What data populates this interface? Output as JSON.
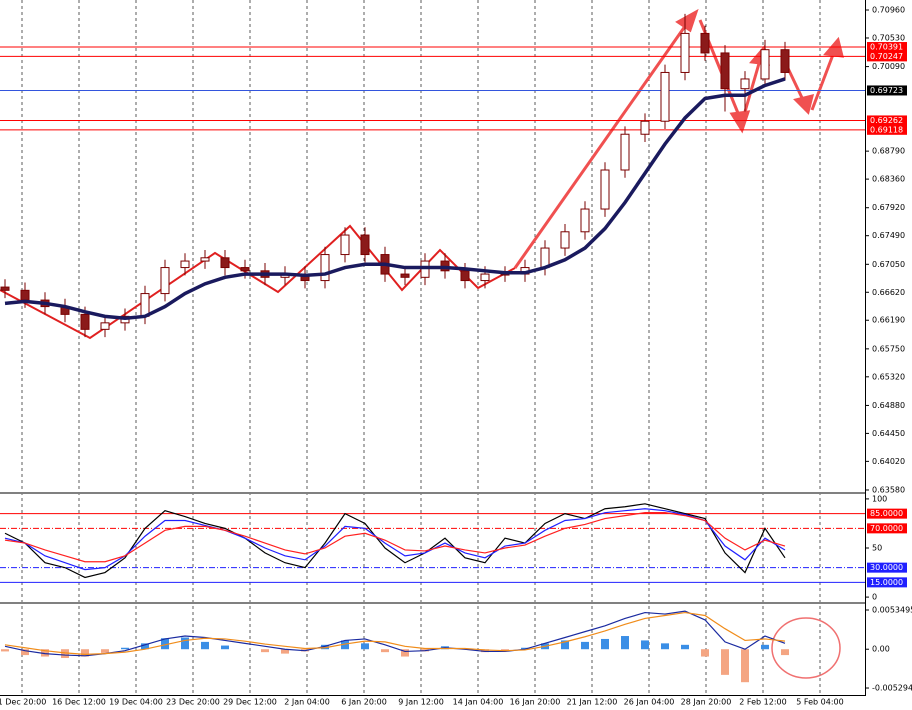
{
  "time_axis": [
    "1 Dec 20:00",
    "16 Dec 12:00",
    "19 Dec 04:00",
    "23 Dec 20:00",
    "29 Dec 12:00",
    "2 Jan 04:00",
    "6 Jan 20:00",
    "9 Jan 12:00",
    "14 Jan 04:00",
    "16 Jan 20:00",
    "21 Jan 12:00",
    "26 Jan 04:00",
    "28 Jan 20:00",
    "2 Feb 12:00",
    "5 Feb 04:00"
  ],
  "chart_data": [
    {
      "type": "candlestick",
      "up_color": "#ffffff",
      "down_color": "#8b1a1a",
      "edge_color": "#7a0000",
      "open": [
        0.667,
        0.6665,
        0.665,
        0.664,
        0.6628,
        0.6605,
        0.6615,
        0.6625,
        0.666,
        0.67,
        0.671,
        0.6715,
        0.67,
        0.6695,
        0.6685,
        0.669,
        0.668,
        0.672,
        0.675,
        0.672,
        0.669,
        0.6685,
        0.671,
        0.6695,
        0.668,
        0.669,
        0.669,
        0.67,
        0.673,
        0.6755,
        0.679,
        0.685,
        0.6905,
        0.6925,
        0.7,
        0.706,
        0.703,
        0.6975,
        0.699,
        0.7035
      ],
      "high": [
        0.6682,
        0.6677,
        0.6662,
        0.6652,
        0.664,
        0.6627,
        0.6637,
        0.6672,
        0.6712,
        0.6722,
        0.6727,
        0.6727,
        0.6712,
        0.6707,
        0.6702,
        0.6702,
        0.6732,
        0.6762,
        0.6762,
        0.6732,
        0.6702,
        0.6722,
        0.6722,
        0.6707,
        0.6702,
        0.6702,
        0.6712,
        0.6742,
        0.6767,
        0.6802,
        0.6862,
        0.6917,
        0.6937,
        0.7012,
        0.709,
        0.7072,
        0.7042,
        0.7002,
        0.705,
        0.7047
      ],
      "low": [
        0.6653,
        0.6638,
        0.6628,
        0.6616,
        0.6593,
        0.6593,
        0.6603,
        0.6613,
        0.6648,
        0.6688,
        0.6698,
        0.6688,
        0.6683,
        0.6673,
        0.6673,
        0.6668,
        0.6668,
        0.6708,
        0.6708,
        0.6678,
        0.6673,
        0.6673,
        0.6683,
        0.6668,
        0.6668,
        0.6678,
        0.6678,
        0.6688,
        0.6718,
        0.6743,
        0.6778,
        0.6838,
        0.6893,
        0.6913,
        0.6988,
        0.7018,
        0.694,
        0.694,
        0.6978,
        0.6988
      ],
      "close": [
        0.6665,
        0.665,
        0.664,
        0.6628,
        0.6605,
        0.6615,
        0.6625,
        0.666,
        0.67,
        0.671,
        0.6715,
        0.67,
        0.6695,
        0.6685,
        0.669,
        0.668,
        0.672,
        0.675,
        0.672,
        0.669,
        0.6685,
        0.671,
        0.6695,
        0.668,
        0.669,
        0.669,
        0.67,
        0.673,
        0.6755,
        0.679,
        0.685,
        0.6905,
        0.6925,
        0.7,
        0.706,
        0.703,
        0.6975,
        0.699,
        0.7035,
        0.7
      ],
      "series": [
        {
          "color": "#1a1a5e",
          "values": [
            0.6645,
            0.6648,
            0.6645,
            0.664,
            0.6632,
            0.6625,
            0.6622,
            0.6625,
            0.664,
            0.666,
            0.6675,
            0.6685,
            0.669,
            0.669,
            0.669,
            0.6688,
            0.669,
            0.67,
            0.6705,
            0.6705,
            0.67,
            0.67,
            0.67,
            0.6698,
            0.6695,
            0.6692,
            0.6692,
            0.67,
            0.6712,
            0.673,
            0.676,
            0.68,
            0.6845,
            0.689,
            0.693,
            0.696,
            0.6965,
            0.6965,
            0.698,
            0.699
          ]
        }
      ],
      "ylim": [
        0.63549,
        0.71114
      ],
      "yticks": [
        {
          "value": 0.7096,
          "label": "0.70960"
        },
        {
          "value": 0.7053,
          "label": "0.70530"
        },
        {
          "value": 0.7009,
          "label": "0.70090"
        },
        {
          "value": 0.6879,
          "label": "0.68790"
        },
        {
          "value": 0.6836,
          "label": "0.68360"
        },
        {
          "value": 0.6792,
          "label": "0.67920"
        },
        {
          "value": 0.6749,
          "label": "0.67490"
        },
        {
          "value": 0.6705,
          "label": "0.67050"
        },
        {
          "value": 0.6662,
          "label": "0.66620"
        },
        {
          "value": 0.6619,
          "label": "0.66190"
        },
        {
          "value": 0.6575,
          "label": "0.65750"
        },
        {
          "value": 0.6532,
          "label": "0.65320"
        },
        {
          "value": 0.6488,
          "label": "0.64880"
        },
        {
          "value": 0.6445,
          "label": "0.64450"
        },
        {
          "value": 0.6402,
          "label": "0.64020"
        },
        {
          "value": 0.6358,
          "label": "0.63580"
        }
      ],
      "levels": [
        {
          "value": 0.70391,
          "label": "0.70391",
          "color": "#ff0000"
        },
        {
          "value": 0.70247,
          "label": "0.70247",
          "color": "#ff0000"
        },
        {
          "value": 0.69723,
          "label": "0.69723",
          "color": "#3355dd"
        },
        {
          "value": 0.69262,
          "label": "0.69262",
          "color": "#ff0000"
        },
        {
          "value": 0.69118,
          "label": "0.69118",
          "color": "#ff0000"
        }
      ]
    },
    {
      "type": "line",
      "series": [
        {
          "color": "#000000",
          "values": [
            65,
            55,
            35,
            30,
            20,
            25,
            40,
            70,
            88,
            82,
            75,
            70,
            60,
            45,
            35,
            30,
            55,
            85,
            75,
            50,
            35,
            45,
            60,
            40,
            35,
            60,
            55,
            75,
            85,
            80,
            90,
            92,
            95,
            90,
            85,
            80,
            45,
            25,
            70,
            40
          ]
        },
        {
          "color": "#2020ff",
          "values": [
            60,
            55,
            42,
            35,
            28,
            30,
            42,
            62,
            78,
            78,
            73,
            68,
            60,
            50,
            42,
            38,
            52,
            72,
            70,
            55,
            42,
            45,
            55,
            45,
            40,
            52,
            55,
            68,
            78,
            80,
            86,
            88,
            90,
            88,
            84,
            78,
            52,
            38,
            60,
            48
          ]
        },
        {
          "color": "#ff2020",
          "values": [
            58,
            55,
            48,
            42,
            36,
            36,
            42,
            55,
            68,
            72,
            72,
            68,
            62,
            55,
            48,
            44,
            50,
            62,
            65,
            58,
            48,
            47,
            52,
            48,
            45,
            50,
            53,
            62,
            70,
            74,
            80,
            83,
            86,
            86,
            83,
            78,
            60,
            48,
            58,
            52
          ]
        }
      ],
      "ylim": [
        -5,
        105
      ],
      "yticks": [
        100,
        50,
        0
      ],
      "levels": [
        {
          "value": 85,
          "label": "85.0000",
          "color": "#ff0000"
        },
        {
          "value": 70,
          "label": "70.0000",
          "color": "#ff0000"
        },
        {
          "value": 30,
          "label": "30.0000",
          "color": "#2020ff"
        },
        {
          "value": 15,
          "label": "15.0000",
          "color": "#2020ff"
        }
      ]
    },
    {
      "type": "macd",
      "positive_color": "#3a8ee6",
      "negative_color": "#f4a582",
      "values": [
        -0.0003,
        -0.0008,
        -0.001,
        -0.0012,
        -0.001,
        -0.0005,
        0.0002,
        0.0008,
        0.0015,
        0.0016,
        0.001,
        0.0005,
        0,
        -0.0004,
        -0.0006,
        -0.0003,
        0.0006,
        0.0012,
        0.0008,
        -0.0004,
        -0.001,
        -0.0003,
        0.0004,
        0.0001,
        -0.0004,
        -0.0003,
        0.0002,
        0.0008,
        0.0012,
        0.001,
        0.0014,
        0.0018,
        0.0012,
        0.0008,
        0.0006,
        -0.001,
        -0.0035,
        -0.0045,
        0.0006,
        -0.0008
      ],
      "series": [
        {
          "color": "#1a2aa0",
          "values": [
            0.0004,
            -0.0002,
            -0.0006,
            -0.0008,
            -0.0009,
            -0.0006,
            -0.0002,
            0.0006,
            0.0014,
            0.0018,
            0.0016,
            0.0012,
            0.0008,
            0.0004,
            0,
            -0.0002,
            0.0004,
            0.0012,
            0.0014,
            0.0006,
            -0.0003,
            -0.0002,
            0.0002,
            0,
            -0.0003,
            -0.0003,
            0,
            0.0008,
            0.0016,
            0.0024,
            0.0032,
            0.0042,
            0.005,
            0.0048,
            0.0052,
            0.004,
            0.001,
            0,
            0.0018,
            0.0008
          ]
        },
        {
          "color": "#f08c1a",
          "values": [
            0.0006,
            0.0002,
            -0.0002,
            -0.0005,
            -0.0007,
            -0.0006,
            -0.0004,
            0,
            0.0006,
            0.0012,
            0.0015,
            0.0014,
            0.0011,
            0.0007,
            0.0004,
            0.0001,
            0.0002,
            0.0007,
            0.0011,
            0.001,
            0.0004,
            0.0001,
            0.0001,
            0.0001,
            -0.0001,
            -0.0002,
            -0.0001,
            0.0004,
            0.001,
            0.0017,
            0.0025,
            0.0034,
            0.0042,
            0.0046,
            0.005,
            0.0046,
            0.0028,
            0.0012,
            0.0014,
            0.0011
          ]
        }
      ],
      "ylim": [
        -0.00611,
        0.00617
      ],
      "yticks": [
        0.0053495,
        {
          "value": 0,
          "label": "0.00"
        },
        -0.005294
      ]
    }
  ]
}
